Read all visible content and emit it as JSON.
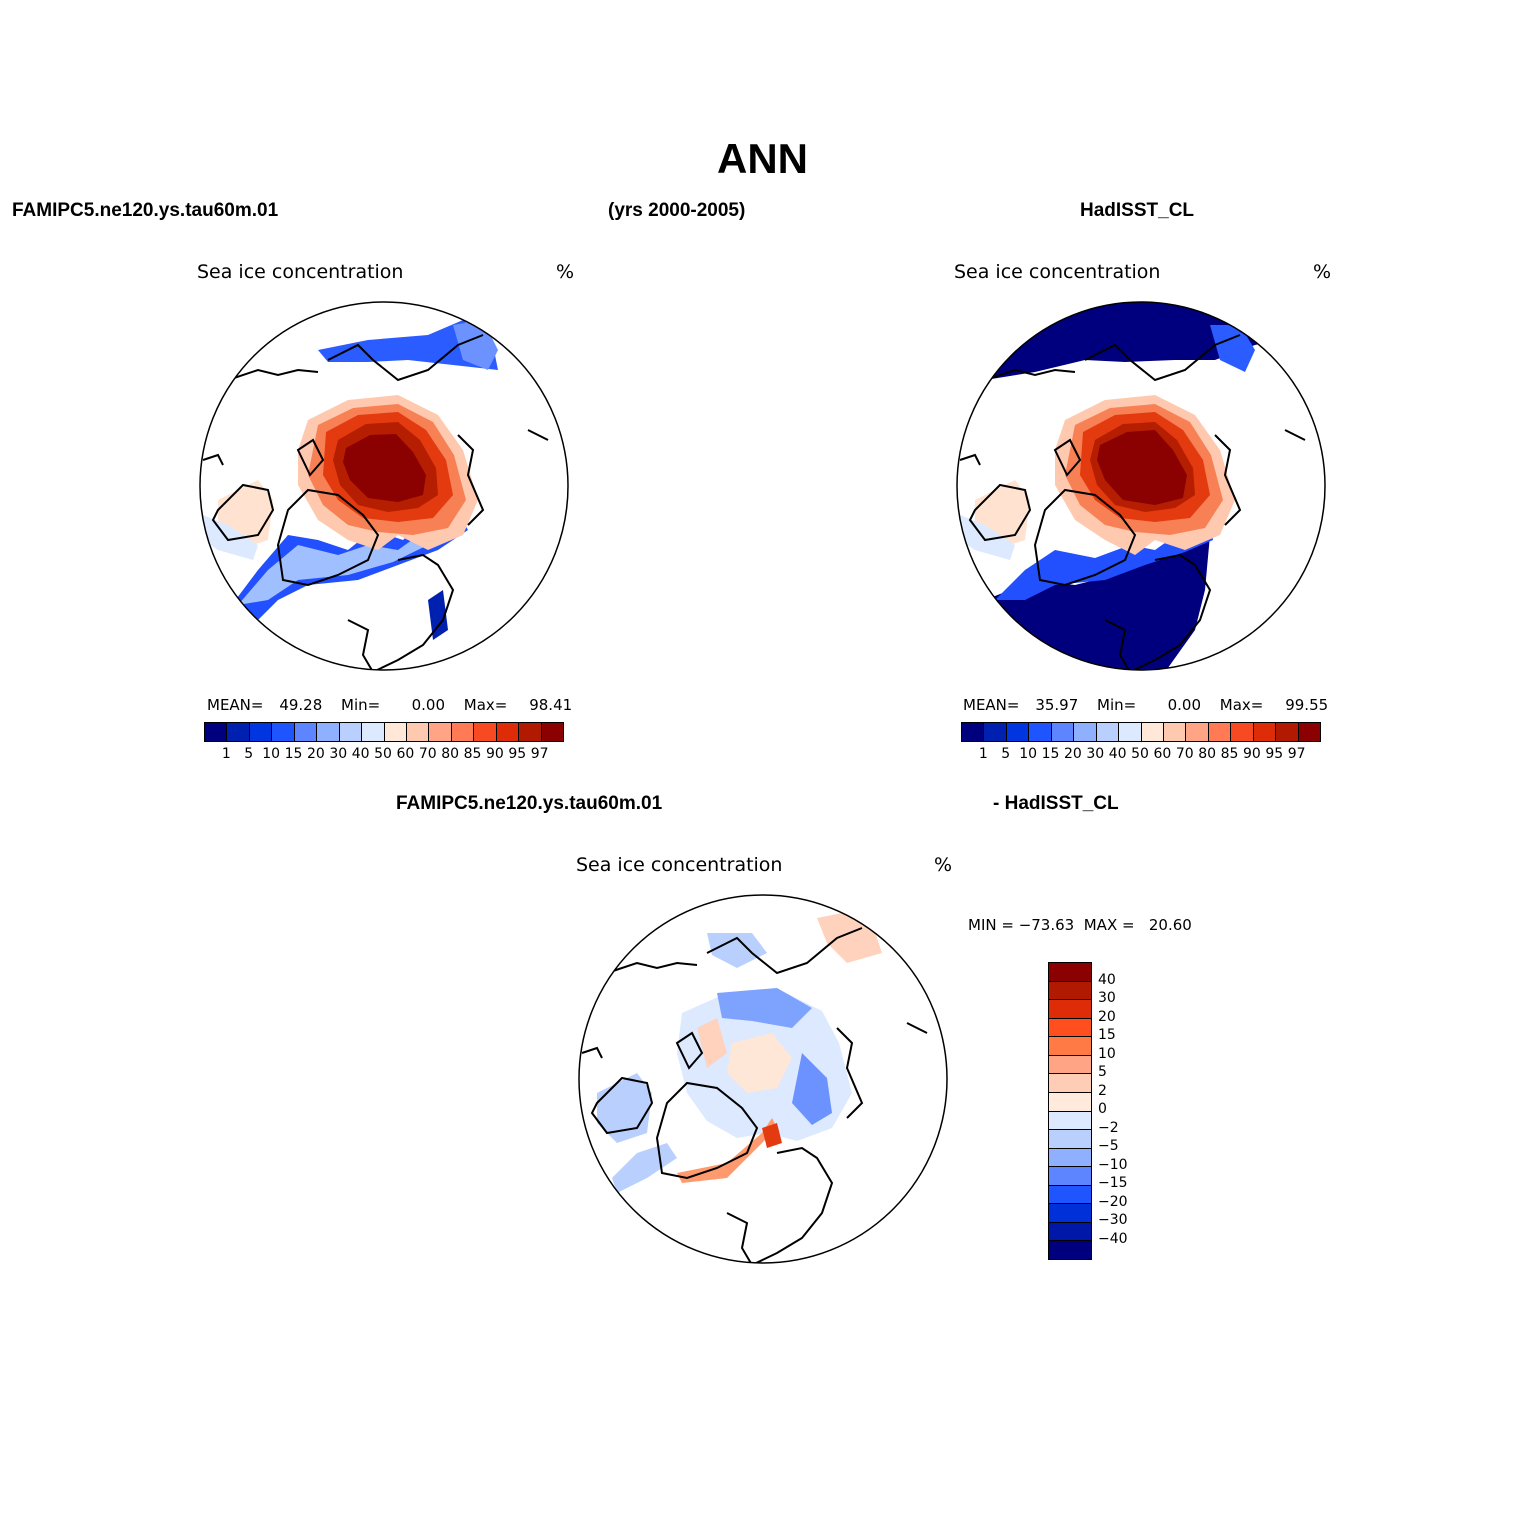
{
  "title": "ANN",
  "header": {
    "left": "FAMIPC5.ne120.ys.tau60m.01",
    "center": "(yrs 2000-2005)",
    "right": "HadISST_CL"
  },
  "panels": {
    "model": {
      "label": "Sea ice concentration",
      "units": "%",
      "mean_label": "MEAN=",
      "mean": "49.28",
      "min_label": "Min=",
      "min": "0.00",
      "max_label": "Max=",
      "max": "98.41"
    },
    "obs": {
      "label": "Sea ice concentration",
      "units": "%",
      "mean_label": "MEAN=",
      "mean": "35.97",
      "min_label": "Min=",
      "min": "0.00",
      "max_label": "Max=",
      "max": "99.55"
    },
    "diff": {
      "header_left": "FAMIPC5.ne120.ys.tau60m.01",
      "header_right": "- HadISST_CL",
      "label": "Sea ice concentration",
      "units": "%",
      "minmax": "MIN = −73.63  MAX =   20.60"
    }
  },
  "colorbar_abs": {
    "ticks": [
      "1",
      "5",
      "10",
      "15",
      "20",
      "30",
      "40",
      "50",
      "60",
      "70",
      "80",
      "85",
      "90",
      "95",
      "97"
    ],
    "colors": [
      "#00007f",
      "#0020b0",
      "#0035e0",
      "#1f55ff",
      "#5d85ff",
      "#8fb0ff",
      "#b9d0ff",
      "#dce9ff",
      "#ffe8d8",
      "#ffc9b0",
      "#ffa585",
      "#ff7a55",
      "#f84a22",
      "#de2c08",
      "#b11a00",
      "#8b0000"
    ]
  },
  "colorbar_diff": {
    "ticks": [
      "40",
      "30",
      "20",
      "15",
      "10",
      "5",
      "2",
      "0",
      "−2",
      "−5",
      "−10",
      "−15",
      "−20",
      "−30",
      "−40"
    ],
    "colors": [
      "#8b0000",
      "#b11a00",
      "#de2c08",
      "#ff4f1f",
      "#ff7a45",
      "#ffa585",
      "#ffcdb5",
      "#ffeadc",
      "#dce9ff",
      "#b9d0ff",
      "#8fb0ff",
      "#5d85ff",
      "#1f55ff",
      "#0030d8",
      "#0018a8",
      "#00007f"
    ]
  }
}
